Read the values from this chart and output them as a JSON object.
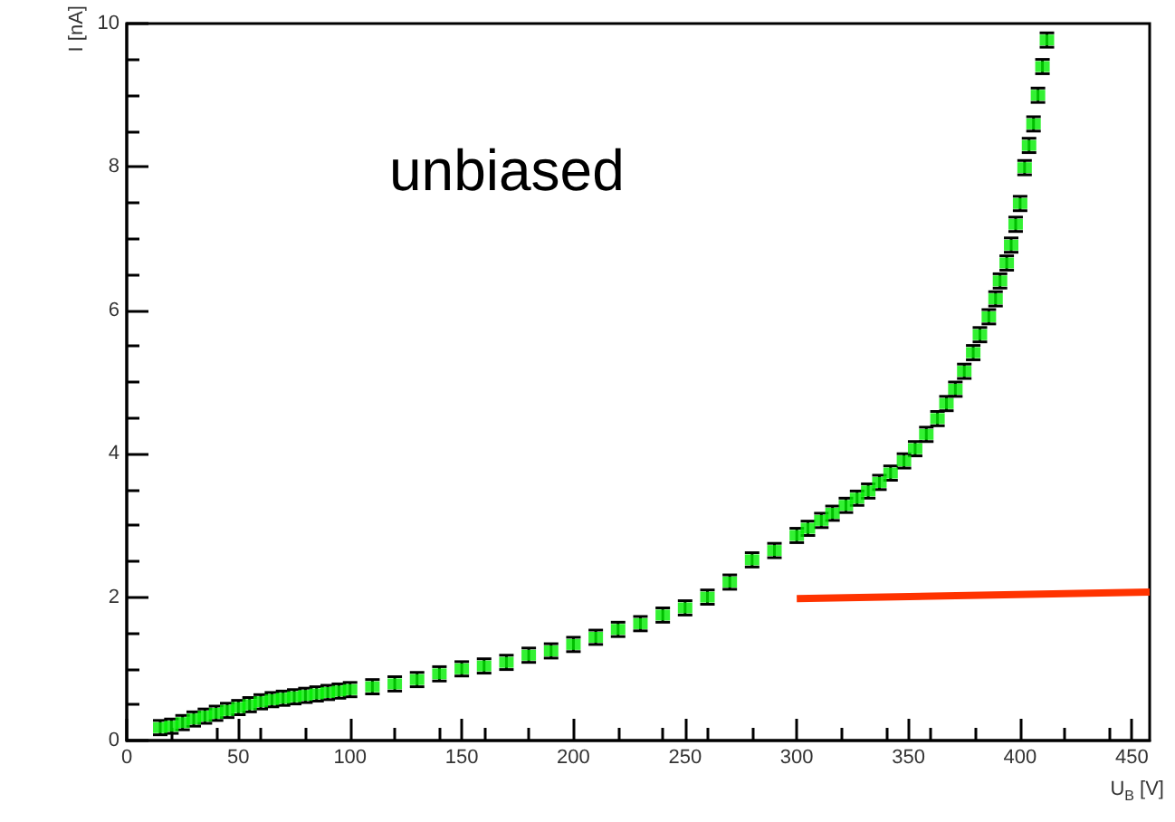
{
  "chart_data": {
    "type": "scatter",
    "xlabel": "U$_{B}$ [V]",
    "ylabel": "I [nA]",
    "annotations": [
      "unbiased"
    ],
    "xlim": [
      0,
      458
    ],
    "xticks": [
      0,
      50,
      100,
      150,
      200,
      250,
      300,
      350,
      400,
      450
    ],
    "ylim": [
      0,
      10
    ],
    "yticks": [
      0,
      2,
      4,
      6,
      8,
      10
    ],
    "grid": false,
    "marker": "square",
    "series": [
      {
        "color": "#00ee00",
        "x": [
          15,
          20,
          25,
          30,
          35,
          40,
          45,
          50,
          55,
          60,
          65,
          70,
          75,
          80,
          85,
          90,
          95,
          100,
          110,
          120,
          130,
          140,
          150,
          160,
          170,
          180,
          190,
          200,
          210,
          220,
          230,
          240,
          250,
          260,
          270,
          280,
          290,
          300,
          305,
          311,
          316,
          322,
          327,
          332,
          337,
          342,
          348,
          353,
          358,
          363,
          367,
          371,
          375,
          379,
          382,
          386,
          389,
          391,
          394,
          396,
          398,
          400,
          402,
          404,
          406,
          408,
          410,
          412
        ],
        "values": [
          0.18,
          0.2,
          0.25,
          0.3,
          0.34,
          0.38,
          0.42,
          0.46,
          0.5,
          0.54,
          0.57,
          0.59,
          0.61,
          0.63,
          0.65,
          0.67,
          0.69,
          0.71,
          0.75,
          0.79,
          0.85,
          0.93,
          1.0,
          1.04,
          1.09,
          1.19,
          1.25,
          1.34,
          1.44,
          1.55,
          1.63,
          1.75,
          1.85,
          2.0,
          2.21,
          2.52,
          2.65,
          2.86,
          2.96,
          3.07,
          3.17,
          3.28,
          3.38,
          3.48,
          3.6,
          3.73,
          3.9,
          4.07,
          4.27,
          4.49,
          4.7,
          4.9,
          5.15,
          5.41,
          5.66,
          5.91,
          6.16,
          6.41,
          6.66,
          6.91,
          7.2,
          7.49,
          7.99,
          8.3,
          8.6,
          9.0,
          9.4,
          9.77
        ],
        "errors": [
          0.1,
          0.1,
          0.1,
          0.1,
          0.1,
          0.1,
          0.1,
          0.1,
          0.1,
          0.1,
          0.1,
          0.1,
          0.1,
          0.1,
          0.1,
          0.1,
          0.1,
          0.1,
          0.1,
          0.1,
          0.1,
          0.1,
          0.1,
          0.1,
          0.1,
          0.1,
          0.1,
          0.1,
          0.1,
          0.1,
          0.1,
          0.1,
          0.1,
          0.1,
          0.1,
          0.1,
          0.1,
          0.1,
          0.1,
          0.1,
          0.1,
          0.1,
          0.1,
          0.1,
          0.1,
          0.1,
          0.1,
          0.1,
          0.1,
          0.1,
          0.1,
          0.1,
          0.1,
          0.1,
          0.1,
          0.1,
          0.1,
          0.1,
          0.1,
          0.1,
          0.1,
          0.1,
          0.1,
          0.1,
          0.1,
          0.1,
          0.1,
          0.1
        ]
      },
      {
        "type": "line",
        "color": "#ff3300",
        "marker": "none",
        "line_style": "solid",
        "x": [
          300,
          458
        ],
        "values": [
          1.98,
          2.07
        ]
      }
    ]
  }
}
